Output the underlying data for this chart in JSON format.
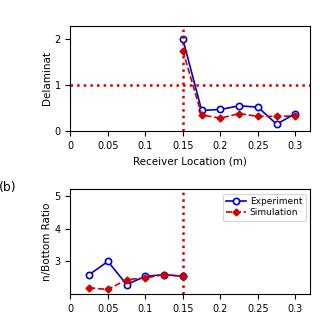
{
  "top_panel": {
    "exp_x": [
      0.15,
      0.175,
      0.2,
      0.225,
      0.25,
      0.275,
      0.3
    ],
    "exp_y": [
      2.0,
      0.45,
      0.47,
      0.55,
      0.52,
      0.15,
      0.38
    ],
    "sim_x": [
      0.15,
      0.175,
      0.2,
      0.225,
      0.25,
      0.275,
      0.3
    ],
    "sim_y": [
      1.75,
      0.35,
      0.28,
      0.38,
      0.32,
      0.32,
      0.33
    ],
    "hline_y": 1.0,
    "vline_x": 0.15,
    "xlabel": "Receiver Location (m)",
    "ylabel": "Delamina",
    "xlim": [
      0,
      0.32
    ],
    "ylim": [
      0,
      2.3
    ],
    "xticks": [
      0,
      0.05,
      0.1,
      0.15,
      0.2,
      0.25,
      0.3
    ],
    "yticks": [
      0,
      1,
      2
    ]
  },
  "bottom_panel": {
    "exp_x": [
      0.025,
      0.05,
      0.075,
      0.1,
      0.125,
      0.15
    ],
    "exp_y": [
      2.6,
      3.0,
      2.3,
      2.55,
      2.6,
      2.55
    ],
    "sim_x": [
      0.025,
      0.05,
      0.075,
      0.1,
      0.125,
      0.15
    ],
    "sim_y": [
      2.2,
      2.15,
      2.45,
      2.5,
      2.6,
      2.55
    ],
    "vline_x": 0.15,
    "ylabel": "n/Bottom Ratio",
    "xlim": [
      0,
      0.32
    ],
    "ylim": [
      2.0,
      5.2
    ],
    "yticks": [
      3,
      4,
      5
    ],
    "xticks": [
      0,
      0.05,
      0.1,
      0.15,
      0.2,
      0.25,
      0.3
    ],
    "panel_label": "(b)"
  },
  "exp_color": "#0000cc",
  "sim_color": "#cc0000",
  "exp_label": "Experiment",
  "sim_label": "Simulation",
  "background": "#ffffff"
}
